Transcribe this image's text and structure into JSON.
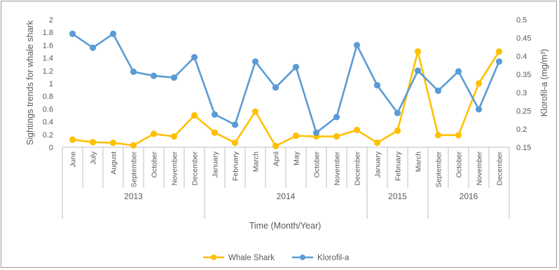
{
  "chart_data": {
    "type": "line",
    "title": "",
    "xlabel": "Time (Month/Year)",
    "ylabel": "Sightings trends for whale shark",
    "y2label": "Klorofil-a (mg/m³)",
    "ylim": [
      0,
      2
    ],
    "y2lim": [
      0.15,
      0.5
    ],
    "yticks": [
      "0",
      "0.2",
      "0.4",
      "0.6",
      "0.8",
      "1",
      "1.2",
      "1.4",
      "1.6",
      "1.8",
      "2"
    ],
    "y2ticks": [
      "0.15",
      "0.2",
      "0.25",
      "0.3",
      "0.35",
      "0.4",
      "0.45",
      "0.5"
    ],
    "categories": [
      "June",
      "July",
      "August",
      "September",
      "October",
      "November",
      "December",
      "January",
      "February",
      "March",
      "April",
      "May",
      "October",
      "November",
      "December",
      "January",
      "February",
      "March",
      "September",
      "October",
      "November",
      "December"
    ],
    "year_groups": [
      {
        "label": "2013",
        "count": 7
      },
      {
        "label": "2014",
        "count": 8
      },
      {
        "label": "2015",
        "count": 3
      },
      {
        "label": "2016",
        "count": 4
      }
    ],
    "series": [
      {
        "name": "Whale Shark",
        "axis": "left",
        "color": "#FFC000",
        "values": [
          0.12,
          0.08,
          0.07,
          0.03,
          0.21,
          0.17,
          0.5,
          0.23,
          0.07,
          0.56,
          0.02,
          0.18,
          0.17,
          0.17,
          0.27,
          0.07,
          0.26,
          1.5,
          0.19,
          0.19,
          1.0,
          1.5
        ]
      },
      {
        "name": "Klorofil-a",
        "axis": "right",
        "color": "#5B9BD5",
        "values": [
          0.461,
          0.423,
          0.461,
          0.357,
          0.346,
          0.341,
          0.397,
          0.24,
          0.212,
          0.385,
          0.314,
          0.37,
          0.19,
          0.233,
          0.43,
          0.32,
          0.244,
          0.36,
          0.305,
          0.358,
          0.254,
          0.385
        ]
      }
    ],
    "grid": false,
    "legend": "bottom"
  }
}
